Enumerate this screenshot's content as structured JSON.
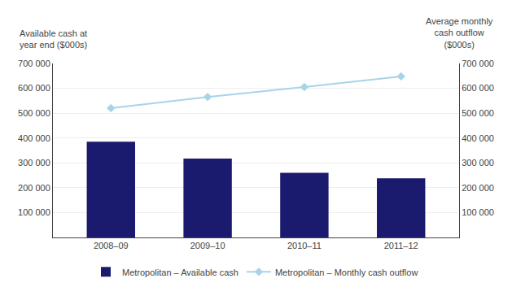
{
  "chart_data": {
    "type": "bar",
    "categories": [
      "2008–09",
      "2009–10",
      "2010–11",
      "2011–12"
    ],
    "series": [
      {
        "name": "Metropolitan – Available cash",
        "type": "bar",
        "color": "#1a1a6e",
        "values": [
          385000,
          317000,
          260000,
          238000
        ]
      },
      {
        "name": "Metropolitan – Monthly cash outflow",
        "type": "line",
        "color": "#a8d4e8",
        "marker": "diamond",
        "line_style": "solid",
        "axis": "y2",
        "values": [
          520000,
          565000,
          605000,
          648000
        ]
      }
    ],
    "ylabel": "Available cash at\nyear end ($000s)",
    "y2label": "Average monthly\ncash outflow\n($000s)",
    "ylim": [
      0,
      700000
    ],
    "yticks": [
      {
        "value": 100000,
        "label": "100 000"
      },
      {
        "value": 200000,
        "label": "200 000"
      },
      {
        "value": 300000,
        "label": "300 000"
      },
      {
        "value": 400000,
        "label": "400 000"
      },
      {
        "value": 500000,
        "label": "500 000"
      },
      {
        "value": 600000,
        "label": "600 000"
      },
      {
        "value": 700000,
        "label": "700 000"
      }
    ],
    "y2lim": [
      0,
      700000
    ],
    "y2ticks": [
      {
        "value": 100000,
        "label": "100 000"
      },
      {
        "value": 200000,
        "label": "200 000"
      },
      {
        "value": 300000,
        "label": "300 000"
      },
      {
        "value": 400000,
        "label": "400 000"
      },
      {
        "value": 500000,
        "label": "500 000"
      },
      {
        "value": 600000,
        "label": "600 000"
      },
      {
        "value": 700000,
        "label": "700 000"
      }
    ],
    "grid": true,
    "legend": "bottom"
  }
}
